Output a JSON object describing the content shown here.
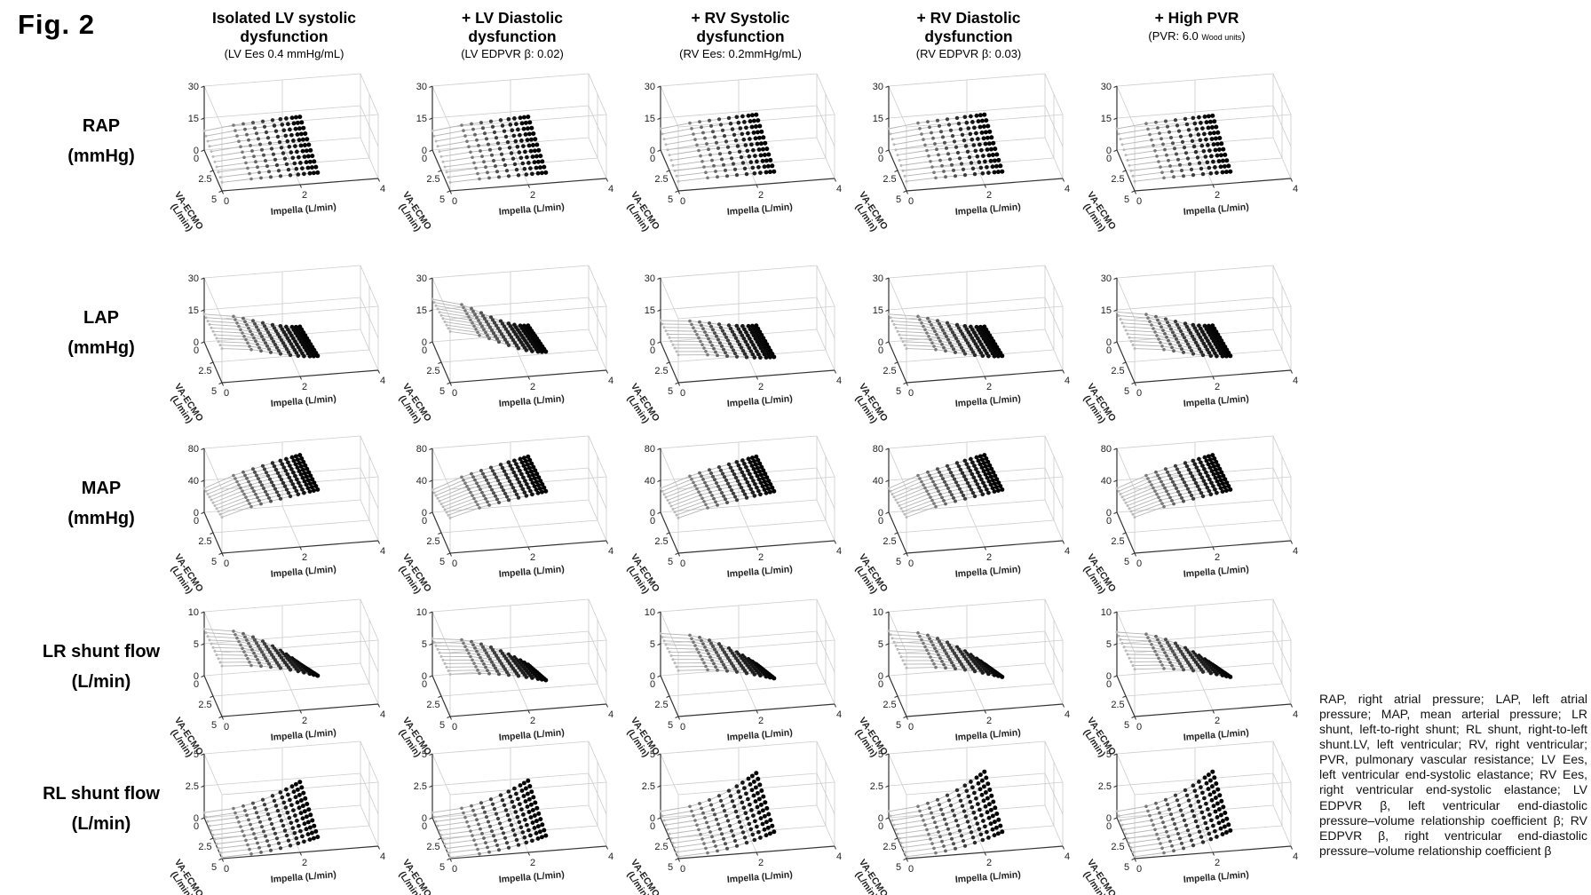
{
  "figure_label": "Fig. 2",
  "caption": "RAP, right atrial pressure; LAP, left atrial pressure; MAP, mean arterial pressure; LR shunt, left-to-right shunt; RL shunt, right-to-left shunt.LV, left ventricular; RV, right ventricular; PVR, pulmonary vascular resistance; LV Ees, left ventricular end-systolic elastance; RV Ees, right ventricular end-systolic elastance; LV EDPVR β, left ventricular end-diastolic pressure–volume relationship coefficient β; RV EDPVR β, right ventricular end-diastolic pressure–volume relationship coefficient β",
  "colors": {
    "marker_light": "#b9b9b9",
    "marker_dark": "#000000",
    "line": "#b4b4b4",
    "grid": "#cccccc",
    "axis": "#333333",
    "text": "#222222"
  },
  "chart_data": {
    "type": "scatter",
    "layout": "5x5 grid of 3D point-mesh surface plots (rows = output variables, columns = simulated conditions)",
    "x_axis": {
      "label": "Impella (L/min)",
      "ticks": [
        0,
        2,
        4
      ],
      "range": [
        0,
        4
      ],
      "samples": [
        0,
        0.75,
        1.0,
        1.25,
        1.5,
        1.75,
        1.95,
        2.1,
        2.25,
        2.35,
        2.45
      ]
    },
    "y_axis": {
      "label_line1": "VA-ECMO",
      "label_line2": "(L/min)",
      "ticks": [
        0,
        2.5,
        5
      ],
      "range": [
        0,
        5
      ],
      "reversed": true,
      "lines": [
        0,
        0.5,
        1,
        1.5,
        2,
        2.5,
        3,
        3.5,
        4,
        4.5,
        5
      ]
    },
    "columns": [
      {
        "title_lines": [
          "Isolated LV systolic",
          "dysfunction"
        ],
        "subtitle_parts": [
          {
            "t": "(LV Ees 0.4 mmHg/mL)",
            "small": false
          }
        ]
      },
      {
        "title_lines": [
          "+ LV Diastolic",
          "dysfunction"
        ],
        "subtitle_parts": [
          {
            "t": "(LV EDPVR β: 0.02)",
            "small": false
          }
        ]
      },
      {
        "title_lines": [
          "+ RV Systolic",
          "dysfunction"
        ],
        "subtitle_parts": [
          {
            "t": "(RV Ees: 0.2mmHg/mL)",
            "small": false
          }
        ]
      },
      {
        "title_lines": [
          "+ RV Diastolic",
          "dysfunction"
        ],
        "subtitle_parts": [
          {
            "t": "(RV EDPVR β: 0.03)",
            "small": false
          }
        ]
      },
      {
        "title_lines": [
          "+ High PVR"
        ],
        "subtitle_parts": [
          {
            "t": "(PVR: 6.0 ",
            "small": false
          },
          {
            "t": "Wood units",
            "small": true
          },
          {
            "t": ")",
            "small": false
          }
        ]
      }
    ],
    "corners_key": "z values at [impella=0,ecmo=0(back)], [impella=max,ecmo=0], [impella=0,ecmo=5(front)], [impella=max,ecmo=5]",
    "rows": [
      {
        "label": "RAP",
        "unit": "(mmHg)",
        "z_ticks": [
          0,
          15,
          30
        ],
        "z_max": 30,
        "shape": {
          "type": "pow",
          "p": 0.55
        },
        "surfaces": [
          [
            9,
            12,
            4,
            5
          ],
          [
            9,
            12,
            4,
            5
          ],
          [
            10,
            13,
            4.5,
            5.5
          ],
          [
            10,
            13,
            4.5,
            5.5
          ],
          [
            10,
            12.5,
            4.5,
            5.5
          ]
        ]
      },
      {
        "label": "LAP",
        "unit": "(mmHg)",
        "z_ticks": [
          0,
          15,
          30
        ],
        "z_max": 30,
        "shape": {
          "type": "smoothstep"
        },
        "surfaces": [
          [
            13,
            3.5,
            16,
            9
          ],
          [
            20,
            4,
            24,
            11
          ],
          [
            10,
            4,
            13,
            8.5
          ],
          [
            13,
            3.5,
            16,
            9
          ],
          [
            14,
            4,
            16,
            9
          ]
        ]
      },
      {
        "label": "MAP",
        "unit": "(mmHg)",
        "z_ticks": [
          0,
          40,
          80
        ],
        "z_max": 80,
        "shape": {
          "type": "pow",
          "p": 0.75
        },
        "surfaces": [
          [
            30,
            62,
            45,
            70
          ],
          [
            28,
            60,
            44,
            68
          ],
          [
            30,
            60,
            44,
            68
          ],
          [
            30,
            62,
            45,
            70
          ],
          [
            30,
            62,
            45,
            70
          ]
        ]
      },
      {
        "label": "LR shunt flow",
        "unit": "(L/min)",
        "z_ticks": [
          0,
          5,
          10
        ],
        "z_max": 10,
        "shape": {
          "type": "pow",
          "p": 1.9
        },
        "surfaces": [
          [
            7.3,
            0.6,
            7.9,
            5.2
          ],
          [
            5.8,
            0.5,
            6.6,
            4.5
          ],
          [
            6.6,
            0.6,
            7.2,
            4.8
          ],
          [
            7,
            0.6,
            7.6,
            5
          ],
          [
            6.8,
            0.5,
            7.4,
            5
          ]
        ]
      },
      {
        "label": "RL shunt flow",
        "unit": "(L/min)",
        "z_ticks": [
          0,
          2.5,
          5
        ],
        "z_max": 5,
        "shape": {
          "type": "pow",
          "p": 2.1
        },
        "surfaces": [
          [
            0.4,
            2.2,
            0.1,
            1.1
          ],
          [
            0.4,
            2.3,
            0.1,
            1.2
          ],
          [
            0.5,
            2.9,
            0.15,
            1.5
          ],
          [
            0.5,
            3,
            0.15,
            1.5
          ],
          [
            0.5,
            3,
            0.15,
            1.6
          ]
        ]
      }
    ]
  }
}
